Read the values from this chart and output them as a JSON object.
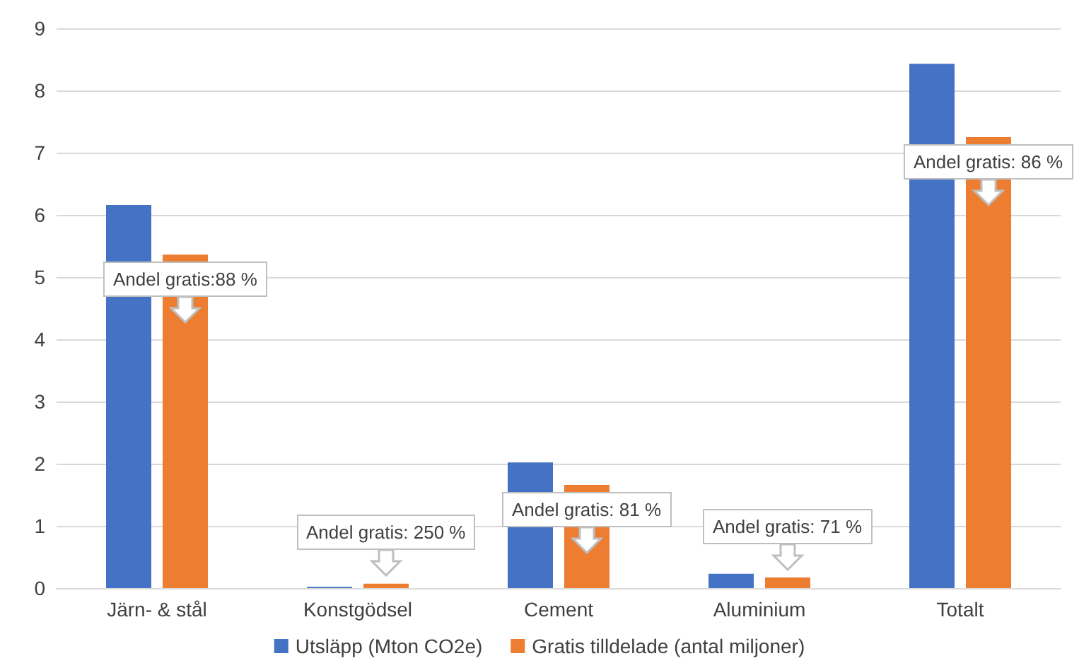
{
  "chart_data": {
    "type": "bar",
    "categories": [
      "Järn- & stål",
      "Konstgödsel",
      "Cement",
      "Aluminium",
      "Totalt"
    ],
    "series": [
      {
        "name": "Utsläpp (Mton CO2e)",
        "color": "#4472c4",
        "values": [
          6.16,
          0.02,
          2.02,
          0.23,
          8.43
        ]
      },
      {
        "name": "Gratis tilldelade (antal miljoner)",
        "color": "#ed7d31",
        "values": [
          5.36,
          0.07,
          1.66,
          0.17,
          7.25
        ]
      }
    ],
    "ylim": [
      0,
      9
    ],
    "yticks": [
      0,
      1,
      2,
      3,
      4,
      5,
      6,
      7,
      8,
      9
    ],
    "grid": "y",
    "legend": "bottom",
    "annotations": [
      {
        "text": "Andel gratis:88 %",
        "x": "Järn- & stål",
        "y": 5.36
      },
      {
        "text": "Andel gratis: 250 %",
        "x": "Konstgödsel",
        "y": 0.07
      },
      {
        "text": "Andel gratis: 81 %",
        "x": "Cement",
        "y": 1.66
      },
      {
        "text": "Andel gratis: 71 %",
        "x": "Aluminium",
        "y": 0.17
      },
      {
        "text": "Andel gratis: 86 %",
        "x": "Totalt",
        "y": 7.25
      }
    ]
  }
}
